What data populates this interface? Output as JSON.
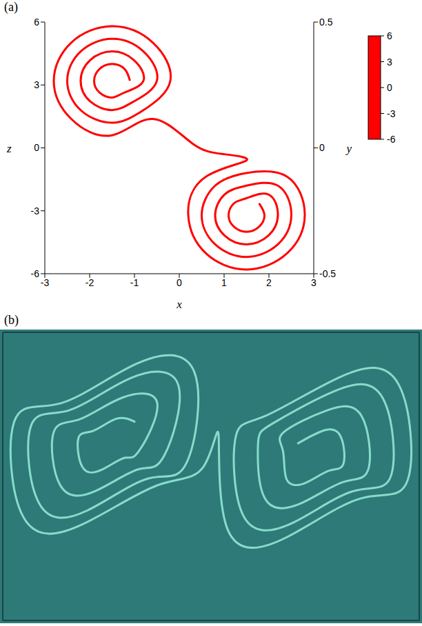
{
  "chart_data": [
    {
      "type": "line",
      "panel": "(a)",
      "x_label": "x",
      "y_label": "y",
      "z_label": "z",
      "xlim": [
        -3,
        3
      ],
      "xticks": [
        -3,
        -2,
        -1,
        0,
        1,
        2,
        3
      ],
      "ylim": [
        -0.5,
        0.5
      ],
      "yticks": [
        -0.5,
        0,
        0.5
      ],
      "zlim": [
        -6,
        6
      ],
      "zticks": [
        -6,
        -3,
        0,
        3,
        6
      ],
      "grid": false,
      "colorbar": {
        "range": [
          -6,
          6
        ],
        "ticks": [
          -6,
          -3,
          0,
          3,
          6
        ],
        "colors": [
          "#ff0000",
          "#ff00ff",
          "#ffff00",
          "#33ee33",
          "#0000ff"
        ]
      },
      "series": [
        {
          "x": [
            -1.1,
            -1.22,
            -1.5,
            -1.78,
            -1.9,
            -1.78,
            -1.5,
            -1.22,
            -0.8,
            -1.01,
            -1.5,
            -1.99,
            -2.2,
            -1.99,
            -1.5,
            -1.01,
            -0.5,
            -0.8,
            -1.5,
            -2.2,
            -2.5,
            -2.2,
            -1.5,
            -0.8,
            -0.2,
            -0.59,
            -1.5,
            -2.41,
            -2.8,
            -2.41,
            -1.5,
            -0.59,
            0.3,
            1.0,
            1.5,
            0.59,
            0.2,
            0.59,
            1.5,
            2.41,
            2.8,
            2.41,
            1.5,
            0.8,
            0.5,
            0.8,
            1.5,
            2.2,
            2.5,
            2.2,
            1.5,
            1.01,
            0.8,
            1.01,
            1.5,
            1.99,
            2.2,
            1.99,
            1.5,
            1.22,
            1.1,
            1.22,
            1.5,
            1.78,
            1.9,
            1.78
          ],
          "z": [
            3.2,
            3.76,
            4.0,
            3.76,
            3.2,
            2.64,
            2.4,
            2.64,
            3.2,
            4.18,
            4.6,
            4.18,
            3.2,
            2.22,
            1.8,
            2.22,
            3.2,
            4.6,
            5.2,
            4.6,
            3.2,
            1.8,
            1.2,
            1.8,
            3.2,
            5.02,
            5.8,
            5.02,
            3.2,
            1.38,
            0.6,
            1.38,
            0.2,
            -0.3,
            -0.6,
            -1.38,
            -3.2,
            -5.02,
            -5.8,
            -5.02,
            -3.2,
            -1.38,
            -1.2,
            -1.8,
            -3.2,
            -4.6,
            -5.2,
            -4.6,
            -3.2,
            -1.8,
            -1.8,
            -2.22,
            -3.2,
            -4.18,
            -4.6,
            -4.18,
            -3.2,
            -2.22,
            -2.4,
            -2.64,
            -3.2,
            -3.76,
            -4.0,
            -3.76,
            -3.2,
            -2.64
          ]
        }
      ]
    },
    {
      "type": "line",
      "panel": "(b)",
      "xlim": [
        -2.4,
        3.1
      ],
      "xticks": [
        -2,
        -1,
        0,
        1,
        2,
        3
      ],
      "ylim": [
        -2.4,
        2.1
      ],
      "yticks": [
        -2,
        -1,
        0,
        1,
        2
      ],
      "grid": true,
      "tick_labels": false,
      "series": [
        {
          "color": "#9ef5e0",
          "x": [
            -0.65,
            -0.9,
            -1.21,
            -1.4,
            -1.35,
            -1.1,
            -0.79,
            -0.6,
            -0.36,
            -0.82,
            -1.39,
            -1.73,
            -1.64,
            -1.18,
            -0.61,
            -0.27,
            -0.08,
            -0.72,
            -1.53,
            -2.03,
            -1.92,
            -1.28,
            -0.47,
            0.03,
            0.13,
            -0.65,
            -1.64,
            -2.25,
            -2.13,
            -1.35,
            -0.36,
            0.25,
            0.45,
            0.57,
            1.35,
            2.34,
            2.95,
            2.83,
            2.05,
            1.06,
            0.67,
            0.78,
            1.42,
            2.23,
            2.73,
            2.62,
            1.98,
            1.17,
            0.97,
            1.06,
            1.52,
            2.09,
            2.43,
            2.34,
            1.88,
            1.31,
            1.3,
            1.35,
            1.6,
            1.91,
            2.1,
            2.05,
            1.8,
            1.49
          ],
          "values": [
            0.7,
            0.75,
            0.56,
            0.45,
            0,
            -0.05,
            0.14,
            0.25,
            0.99,
            1.08,
            0.74,
            0.53,
            -0.29,
            -0.38,
            -0.04,
            0.17,
            1.27,
            1.38,
            0.88,
            0.63,
            -0.57,
            -0.68,
            -0.18,
            0.07,
            1.48,
            1.6,
            0.99,
            0.7,
            -0.78,
            -0.9,
            -0.29,
            0,
            0.5,
            -0.98,
            -1.1,
            -0.49,
            -0.2,
            1.28,
            1.4,
            0.79,
            0.43,
            -0.77,
            -0.88,
            -0.38,
            -0.13,
            1.07,
            1.18,
            0.68,
            0.33,
            -0.49,
            -0.58,
            -0.24,
            -0.03,
            0.79,
            0.88,
            0.54,
            0.25,
            -0.2,
            -0.25,
            -0.06,
            0.05,
            0.5,
            0.55,
            0.36
          ]
        }
      ]
    }
  ]
}
